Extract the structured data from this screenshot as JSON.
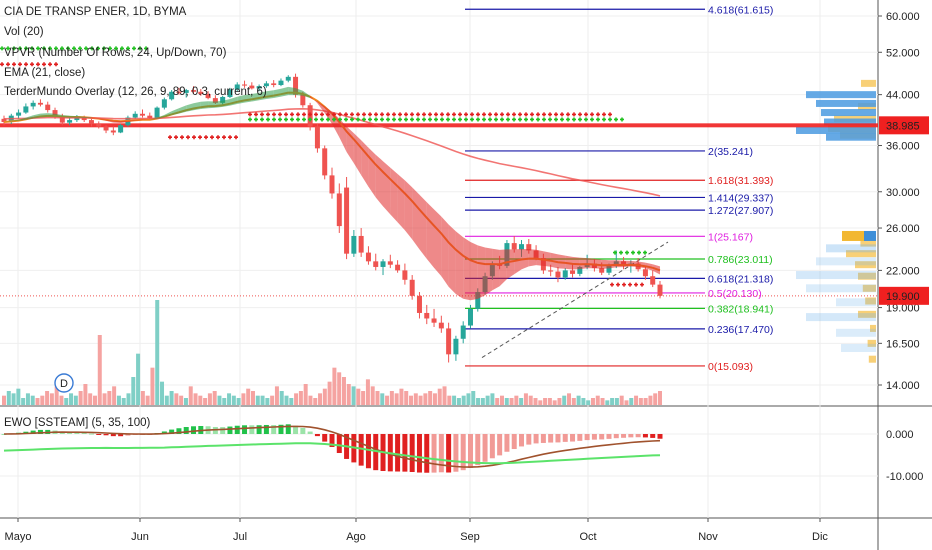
{
  "header": {
    "title": "CIA DE TRANSP ENER, 1D, BYMA",
    "indicators": [
      "Vol (20)",
      "VPVR (Number Of Rows, 24, Up/Down, 70)",
      "EMA (21, close)",
      "TerderMundo Overlay (12, 26, 9, 89, 0.3, current, 6)"
    ],
    "oscillator_label": "EWO [SSTEAM] (5, 35, 100)",
    "dividend_marker": "D"
  },
  "colors": {
    "up": "#26a69a",
    "down": "#ef5350",
    "fib_blue": "#1a1aa8",
    "fib_red": "#e02020",
    "fib_green": "#20c020",
    "fib_magenta": "#e020e0",
    "ema": "#f08a20",
    "last_price_bg": "#ef2020",
    "level_bg": "#ef2020"
  },
  "chart_data": [
    {
      "type": "candlestick",
      "title": "CIA DE TRANSP ENER, 1D, BYMA",
      "price_axis": {
        "scale": "log",
        "ticks": [
          "60.000",
          "52.000",
          "44.000",
          "36.000",
          "30.000",
          "26.000",
          "22.000",
          "19.000",
          "16.500",
          "14.000"
        ],
        "tick_values": [
          60,
          52,
          44,
          36,
          30,
          26,
          22,
          19,
          16.5,
          14
        ]
      },
      "time_axis": {
        "labels": [
          "Mayo",
          "Jun",
          "Jul",
          "Ago",
          "Sep",
          "Oct",
          "Nov",
          "Dic"
        ]
      },
      "price_labels": [
        {
          "text": "38.985",
          "value": 38.985
        },
        {
          "text": "19.900",
          "value": 19.9
        }
      ],
      "fibonacci": [
        {
          "label": "4.618(61.615)",
          "value": 61.615,
          "color": "blue"
        },
        {
          "label": "2(35.241)",
          "value": 35.241,
          "color": "blue"
        },
        {
          "label": "1.618(31.393)",
          "value": 31.393,
          "color": "red"
        },
        {
          "label": "1.414(29.337)",
          "value": 29.337,
          "color": "blue"
        },
        {
          "label": "1.272(27.907)",
          "value": 27.907,
          "color": "blue"
        },
        {
          "label": "1(25.167)",
          "value": 25.167,
          "color": "magenta"
        },
        {
          "label": "0.786(23.011)",
          "value": 23.011,
          "color": "green"
        },
        {
          "label": "0.618(21.318)",
          "value": 21.318,
          "color": "blue"
        },
        {
          "label": "0.5(20.130)",
          "value": 20.13,
          "color": "magenta"
        },
        {
          "label": "0.382(18.941)",
          "value": 18.941,
          "color": "green"
        },
        {
          "label": "0.236(17.470)",
          "value": 17.47,
          "color": "blue"
        },
        {
          "label": "0(15.093)",
          "value": 15.093,
          "color": "red"
        }
      ],
      "candles": [
        [
          40.0,
          40.5,
          39.0,
          39.5
        ],
        [
          39.5,
          40.8,
          39.2,
          40.5
        ],
        [
          40.5,
          41.5,
          40.0,
          41.0
        ],
        [
          41.0,
          42.5,
          40.8,
          42.0
        ],
        [
          42.0,
          43.0,
          41.5,
          42.6
        ],
        [
          42.6,
          43.2,
          42.0,
          42.3
        ],
        [
          42.3,
          42.8,
          41.0,
          41.4
        ],
        [
          41.4,
          41.8,
          40.0,
          40.3
        ],
        [
          40.3,
          40.8,
          39.0,
          39.4
        ],
        [
          39.4,
          40.2,
          39.0,
          39.8
        ],
        [
          39.8,
          40.6,
          39.5,
          40.2
        ],
        [
          40.2,
          40.5,
          39.5,
          39.8
        ],
        [
          39.8,
          40.0,
          38.8,
          39.2
        ],
        [
          39.2,
          39.6,
          38.5,
          38.8
        ],
        [
          38.8,
          39.0,
          37.8,
          38.2
        ],
        [
          38.2,
          38.8,
          37.5,
          37.9
        ],
        [
          37.9,
          39.2,
          37.8,
          39.0
        ],
        [
          39.0,
          40.5,
          38.8,
          40.2
        ],
        [
          40.2,
          41.2,
          40.0,
          40.8
        ],
        [
          40.8,
          41.5,
          40.2,
          40.5
        ],
        [
          40.5,
          41.0,
          39.8,
          40.1
        ],
        [
          40.1,
          42.0,
          40.0,
          41.8
        ],
        [
          41.8,
          43.5,
          41.5,
          43.2
        ],
        [
          43.2,
          44.8,
          43.0,
          44.5
        ],
        [
          44.5,
          45.2,
          44.0,
          44.3
        ],
        [
          44.3,
          45.0,
          43.5,
          44.8
        ],
        [
          44.8,
          45.5,
          44.2,
          44.5
        ],
        [
          44.5,
          45.0,
          43.8,
          44.1
        ],
        [
          44.1,
          44.6,
          43.2,
          43.4
        ],
        [
          43.4,
          43.9,
          42.4,
          42.6
        ],
        [
          42.6,
          43.8,
          42.3,
          43.6
        ],
        [
          43.6,
          45.2,
          43.4,
          44.9
        ],
        [
          44.9,
          46.2,
          44.6,
          45.8
        ],
        [
          45.8,
          46.5,
          45.2,
          45.6
        ],
        [
          45.6,
          46.2,
          44.9,
          45.1
        ],
        [
          45.1,
          45.8,
          44.6,
          45.5
        ],
        [
          45.5,
          46.4,
          45.2,
          46.0
        ],
        [
          46.0,
          46.6,
          45.3,
          45.7
        ],
        [
          45.7,
          46.9,
          45.5,
          46.5
        ],
        [
          46.5,
          47.5,
          46.2,
          47.2
        ],
        [
          47.2,
          47.8,
          43.5,
          44.0
        ],
        [
          44.0,
          44.5,
          41.8,
          42.2
        ],
        [
          42.2,
          42.6,
          38.2,
          38.8
        ],
        [
          38.8,
          39.2,
          35.0,
          35.6
        ],
        [
          35.6,
          36.0,
          31.5,
          32.0
        ],
        [
          32.0,
          33.0,
          29.2,
          29.8
        ],
        [
          29.8,
          31.0,
          25.5,
          26.2
        ],
        [
          30.5,
          31.8,
          23.0,
          23.5
        ],
        [
          23.5,
          25.8,
          23.2,
          25.2
        ],
        [
          25.2,
          26.0,
          23.2,
          23.6
        ],
        [
          23.6,
          24.2,
          22.5,
          22.8
        ],
        [
          22.8,
          23.5,
          22.0,
          22.3
        ],
        [
          22.3,
          23.0,
          21.6,
          22.8
        ],
        [
          22.8,
          23.4,
          22.2,
          22.5
        ],
        [
          22.5,
          22.9,
          21.8,
          22.0
        ],
        [
          22.0,
          22.6,
          20.8,
          21.2
        ],
        [
          21.2,
          21.6,
          19.6,
          19.9
        ],
        [
          19.9,
          20.2,
          18.2,
          18.6
        ],
        [
          18.6,
          19.2,
          17.8,
          18.2
        ],
        [
          18.2,
          18.9,
          17.6,
          17.9
        ],
        [
          17.9,
          18.4,
          17.2,
          17.5
        ],
        [
          17.5,
          17.9,
          15.3,
          15.8
        ],
        [
          15.8,
          17.0,
          15.4,
          16.8
        ],
        [
          16.8,
          18.0,
          16.5,
          17.7
        ],
        [
          17.7,
          19.2,
          17.5,
          18.9
        ],
        [
          18.9,
          20.5,
          18.7,
          20.2
        ],
        [
          20.2,
          21.8,
          20.0,
          21.5
        ],
        [
          21.5,
          22.8,
          21.2,
          22.6
        ],
        [
          22.6,
          23.3,
          22.1,
          22.4
        ],
        [
          22.4,
          24.8,
          22.2,
          24.5
        ],
        [
          24.5,
          25.2,
          23.6,
          23.9
        ],
        [
          23.9,
          24.8,
          23.2,
          24.4
        ],
        [
          24.4,
          24.9,
          23.5,
          23.8
        ],
        [
          23.8,
          24.3,
          22.9,
          23.1
        ],
        [
          23.1,
          23.5,
          21.7,
          22.0
        ],
        [
          22.0,
          22.5,
          21.5,
          21.9
        ],
        [
          21.9,
          22.3,
          21.0,
          21.4
        ],
        [
          21.4,
          22.2,
          21.2,
          22.0
        ],
        [
          22.0,
          22.6,
          21.4,
          21.7
        ],
        [
          21.7,
          22.4,
          21.5,
          22.3
        ],
        [
          22.3,
          23.4,
          22.1,
          22.6
        ],
        [
          22.6,
          23.0,
          21.9,
          22.2
        ],
        [
          22.2,
          22.7,
          21.6,
          21.8
        ],
        [
          21.8,
          22.6,
          21.6,
          22.4
        ],
        [
          22.4,
          23.8,
          22.2,
          22.8
        ],
        [
          22.8,
          23.2,
          22.1,
          22.4
        ],
        [
          22.4,
          22.9,
          21.8,
          22.6
        ],
        [
          22.6,
          23.1,
          21.9,
          22.1
        ],
        [
          22.1,
          22.4,
          21.2,
          21.5
        ],
        [
          21.5,
          22.0,
          20.6,
          20.8
        ],
        [
          20.8,
          21.1,
          19.7,
          19.9
        ]
      ],
      "volume": [
        4,
        6,
        5,
        7,
        3,
        5,
        4,
        3,
        4,
        6,
        5,
        8,
        4,
        3,
        5,
        4,
        6,
        9,
        5,
        4,
        30,
        5,
        6,
        8,
        4,
        3,
        5,
        12,
        22,
        6,
        4,
        16,
        45,
        10,
        4,
        6,
        5,
        4,
        3,
        8,
        5,
        4,
        3,
        5,
        6,
        4,
        3,
        5,
        4,
        3,
        5,
        7,
        6,
        4,
        4,
        3,
        4,
        8,
        6,
        4,
        3,
        5,
        6,
        9,
        4,
        3,
        5,
        7,
        10,
        16,
        14,
        12,
        9,
        8,
        7,
        6,
        11,
        8,
        6,
        5,
        4,
        6,
        5,
        7,
        6,
        4,
        5,
        4,
        5,
        6,
        5,
        7,
        8,
        4,
        4,
        3,
        4,
        5,
        6,
        3,
        3,
        4,
        5,
        3,
        4,
        3,
        3,
        4,
        3,
        5,
        4,
        3,
        2,
        3,
        3,
        2,
        3,
        4,
        5,
        3,
        4,
        3,
        2,
        3,
        4,
        3,
        2,
        3,
        3,
        4,
        2,
        3,
        4,
        3,
        3,
        4,
        5,
        6
      ],
      "oscillator": {
        "ticks": [
          "0.000",
          "-10.000"
        ],
        "tick_values": [
          0,
          -10
        ]
      }
    }
  ]
}
